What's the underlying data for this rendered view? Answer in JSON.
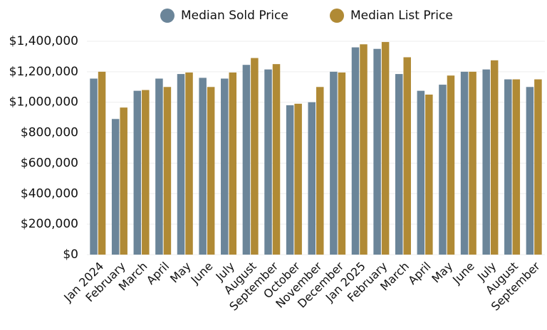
{
  "chart_data": {
    "type": "bar",
    "categories": [
      "Jan 2024",
      "February",
      "March",
      "April",
      "May",
      "June",
      "July",
      "August",
      "September",
      "October",
      "November",
      "December",
      "Jan 2025",
      "February",
      "March",
      "April",
      "May",
      "June",
      "July",
      "August",
      "September"
    ],
    "series": [
      {
        "name": "Median Sold Price",
        "color": "#6b8599",
        "values": [
          1155000,
          890000,
          1075000,
          1155000,
          1185000,
          1160000,
          1155000,
          1245000,
          1215000,
          980000,
          1000000,
          1200000,
          1360000,
          1350000,
          1185000,
          1075000,
          1115000,
          1200000,
          1215000,
          1150000,
          1100000
        ]
      },
      {
        "name": "Median List Price",
        "color": "#b08a35",
        "values": [
          1200000,
          965000,
          1080000,
          1100000,
          1195000,
          1100000,
          1195000,
          1290000,
          1250000,
          990000,
          1100000,
          1195000,
          1380000,
          1395000,
          1295000,
          1050000,
          1175000,
          1200000,
          1275000,
          1150000,
          1150000
        ]
      }
    ],
    "ylim": [
      0,
      1400000
    ],
    "yticks": [
      {
        "value": 0,
        "label": "$0"
      },
      {
        "value": 200000,
        "label": "$200,000"
      },
      {
        "value": 400000,
        "label": "$400,000"
      },
      {
        "value": 600000,
        "label": "$600,000"
      },
      {
        "value": 800000,
        "label": "$800,000"
      },
      {
        "value": 1000000,
        "label": "$1,000,000"
      },
      {
        "value": 1200000,
        "label": "$1,200,000"
      },
      {
        "value": 1400000,
        "label": "$1,400,000"
      }
    ],
    "grid": true,
    "legend": "top"
  }
}
